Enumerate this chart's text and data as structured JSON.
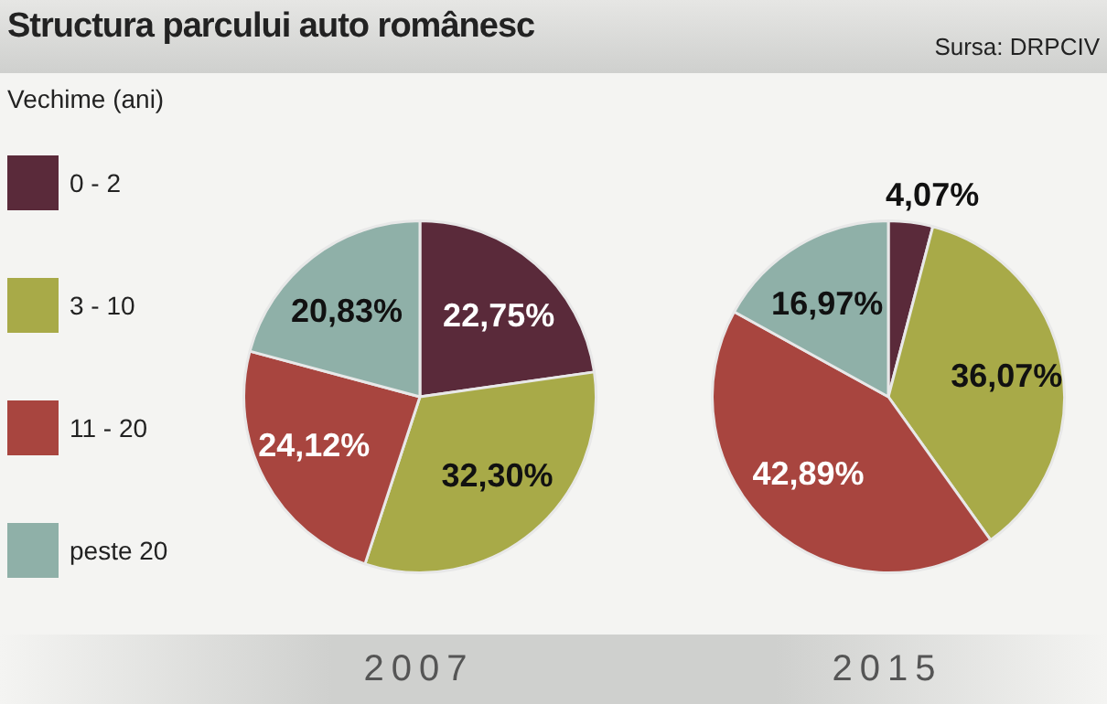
{
  "chart_data": [
    {
      "type": "pie",
      "title": "Structura parcului auto românesc",
      "legend_title": "Vechime (ani)",
      "legend": "left",
      "annotations": [
        "Sursa: DRPCIV"
      ],
      "xlabel": "2007",
      "categories": [
        "0 - 2",
        "3 - 10",
        "11 - 20",
        "peste 20"
      ],
      "values": [
        22.75,
        32.3,
        24.12,
        20.83
      ],
      "value_labels": [
        "22,75%",
        "32,30%",
        "24,12%",
        "20,83%"
      ],
      "colors": [
        "#5a2a3a",
        "#a8aa48",
        "#a8453f",
        "#8fb0a8"
      ]
    },
    {
      "type": "pie",
      "xlabel": "2015",
      "categories": [
        null,
        null,
        null,
        null
      ],
      "values": [
        4.07,
        36.07,
        42.89,
        16.97
      ],
      "value_labels": [
        "4,07%",
        "36,07%",
        "42,89%",
        "16,97%"
      ],
      "colors": [
        "#5a2a3a",
        "#a8aa48",
        "#a8453f",
        "#8fb0a8"
      ]
    }
  ]
}
